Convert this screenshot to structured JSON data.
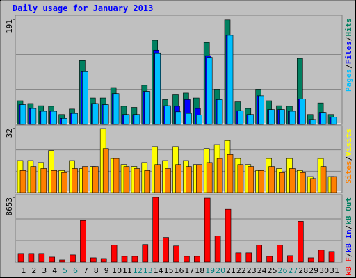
{
  "chart_data": [
    {
      "type": "bar",
      "title": "Daily usage for January 2013",
      "ylim": [
        0,
        191
      ],
      "yticks": [
        191
      ],
      "legend_separator": "/",
      "series": [
        {
          "name": "Hits",
          "color": "#008060",
          "values": [
            43,
            38,
            34,
            33,
            18,
            28,
            116,
            48,
            48,
            67,
            33,
            31,
            71,
            153,
            45,
            55,
            57,
            48,
            149,
            64,
            190,
            41,
            29,
            64,
            43,
            34,
            33,
            120,
            18,
            39,
            18
          ]
        },
        {
          "name": "Files",
          "color": "#0000ff",
          "values": [
            36,
            29,
            24,
            24,
            11,
            20,
            97,
            38,
            36,
            56,
            18,
            18,
            60,
            135,
            34,
            33,
            45,
            29,
            125,
            45,
            162,
            25,
            18,
            52,
            27,
            27,
            24,
            46,
            9,
            22,
            13
          ]
        },
        {
          "name": "Pages",
          "color": "#00c0ff",
          "values": [
            36,
            29,
            24,
            24,
            11,
            20,
            97,
            38,
            36,
            56,
            18,
            18,
            60,
            130,
            34,
            23,
            20,
            17,
            122,
            45,
            162,
            25,
            18,
            52,
            27,
            27,
            24,
            46,
            9,
            22,
            13
          ]
        }
      ]
    },
    {
      "type": "bar",
      "ylim": [
        0,
        32
      ],
      "yticks": [
        32
      ],
      "legend_separator": "/",
      "series": [
        {
          "name": "Visits",
          "color": "#ffff00",
          "values": [
            16,
            16,
            15,
            21,
            11,
            16,
            12,
            13,
            32,
            17,
            14,
            13,
            15,
            23,
            16,
            23,
            16,
            14,
            22,
            24,
            26,
            17,
            14,
            11,
            17,
            12,
            17,
            11,
            8,
            17,
            8
          ]
        },
        {
          "name": "Sites",
          "color": "#ff8000",
          "values": [
            11,
            13,
            12,
            11,
            10,
            12,
            13,
            13,
            22,
            17,
            13,
            12,
            11,
            14,
            12,
            14,
            13,
            14,
            15,
            17,
            19,
            14,
            13,
            11,
            13,
            10,
            12,
            10,
            7,
            13,
            8
          ]
        }
      ]
    },
    {
      "type": "bar",
      "ylim": [
        0,
        8653
      ],
      "yticks": [
        8653
      ],
      "legend_separator": "/",
      "categories": [
        "1",
        "2",
        "3",
        "4",
        "5",
        "6",
        "7",
        "8",
        "9",
        "10",
        "11",
        "12",
        "13",
        "14",
        "15",
        "16",
        "17",
        "18",
        "19",
        "20",
        "21",
        "22",
        "23",
        "24",
        "25",
        "26",
        "27",
        "28",
        "29",
        "30",
        "31"
      ],
      "highlight_categories": [
        4,
        5,
        11,
        12,
        18,
        19,
        25,
        26
      ],
      "highlight_color": "#008080",
      "series": [
        {
          "name": "kB F",
          "color": "#ff0000",
          "values": [
            1129,
            1129,
            1129,
            658,
            282,
            940,
            5550,
            564,
            470,
            2257,
            752,
            752,
            2351,
            8653,
            3292,
            2163,
            752,
            752,
            8559,
            3480,
            7054,
            1223,
            1223,
            2257,
            752,
            2257,
            847,
            5455,
            564,
            1599,
            1411
          ]
        },
        {
          "name": "kB In",
          "color": "#0000ff",
          "values": [
            0,
            0,
            0,
            0,
            0,
            0,
            0,
            0,
            0,
            0,
            0,
            0,
            0,
            0,
            0,
            0,
            0,
            0,
            0,
            0,
            0,
            0,
            0,
            0,
            0,
            0,
            0,
            0,
            0,
            0,
            0
          ]
        },
        {
          "name": "kB Out",
          "color": "#008060",
          "values": [
            0,
            0,
            0,
            0,
            0,
            0,
            0,
            0,
            0,
            0,
            0,
            0,
            0,
            0,
            0,
            0,
            0,
            0,
            0,
            0,
            0,
            0,
            0,
            0,
            0,
            0,
            0,
            0,
            0,
            0,
            0
          ]
        }
      ]
    }
  ]
}
